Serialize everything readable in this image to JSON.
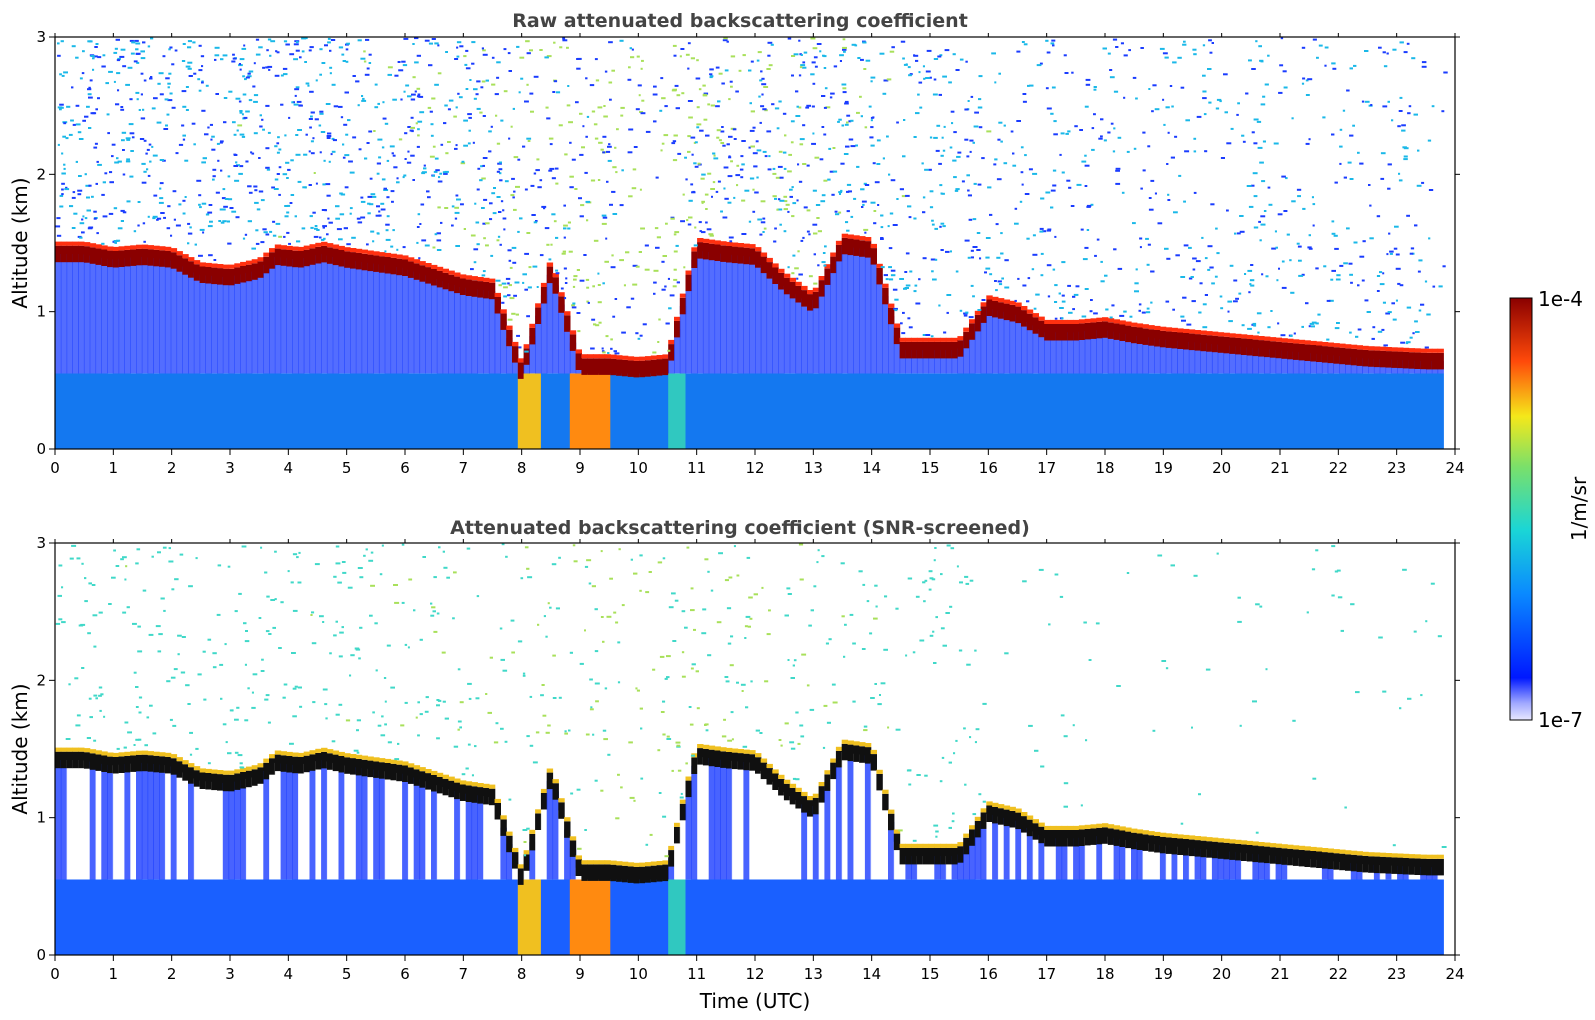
{
  "chart_data": [
    {
      "type": "heatmap",
      "title": "Raw attenuated backscattering coefficient",
      "xlabel": "",
      "ylabel": "Altitude (km)",
      "xlim": [
        0,
        24
      ],
      "ylim": [
        0,
        3
      ],
      "xticks": [
        "0",
        "1",
        "2",
        "3",
        "4",
        "5",
        "6",
        "7",
        "8",
        "9",
        "10",
        "11",
        "12",
        "13",
        "14",
        "15",
        "16",
        "17",
        "18",
        "19",
        "20",
        "21",
        "22",
        "23",
        "24"
      ],
      "yticks": [
        "0",
        "1",
        "2",
        "3"
      ],
      "screened": false,
      "cloud_base_km": {
        "time_utc": [
          0,
          0.5,
          1,
          1.5,
          2,
          2.5,
          3,
          3.5,
          3.8,
          4.2,
          4.6,
          5,
          5.5,
          6,
          6.5,
          7,
          7.5,
          8,
          8.5,
          9,
          9.5,
          10,
          10.5,
          11,
          11.5,
          12,
          12.5,
          13,
          13.5,
          14,
          14.5,
          15,
          15.5,
          16,
          16.5,
          17,
          17.5,
          18,
          18.5,
          19,
          19.5,
          20,
          20.5,
          21,
          21.5,
          22,
          22.5,
          23,
          23.5,
          23.8
        ],
        "altitude_km": [
          1.42,
          1.42,
          1.38,
          1.4,
          1.38,
          1.27,
          1.25,
          1.3,
          1.4,
          1.38,
          1.42,
          1.38,
          1.35,
          1.32,
          1.25,
          1.18,
          1.15,
          0.55,
          1.3,
          0.6,
          0.6,
          0.58,
          0.6,
          1.45,
          1.42,
          1.4,
          1.2,
          1.05,
          1.48,
          1.45,
          0.72,
          0.72,
          0.72,
          1.03,
          0.98,
          0.85,
          0.85,
          0.87,
          0.83,
          0.8,
          0.78,
          0.76,
          0.74,
          0.72,
          0.7,
          0.68,
          0.66,
          0.65,
          0.64,
          0.64
        ]
      },
      "colorbar": {
        "label": "1/m/sr",
        "min_label": "1e-7",
        "max_label": "1e-4",
        "scale": "log"
      }
    },
    {
      "type": "heatmap",
      "title": "Attenuated backscattering coefficient (SNR-screened)",
      "xlabel": "Time (UTC)",
      "ylabel": "Altitude (km)",
      "xlim": [
        0,
        24
      ],
      "ylim": [
        0,
        3
      ],
      "xticks": [
        "0",
        "1",
        "2",
        "3",
        "4",
        "5",
        "6",
        "7",
        "8",
        "9",
        "10",
        "11",
        "12",
        "13",
        "14",
        "15",
        "16",
        "17",
        "18",
        "19",
        "20",
        "21",
        "22",
        "23",
        "24"
      ],
      "yticks": [
        "0",
        "1",
        "2",
        "3"
      ],
      "screened": true,
      "colorbar": {
        "label": "1/m/sr",
        "min_label": "1e-7",
        "max_label": "1e-4",
        "scale": "log"
      }
    }
  ]
}
